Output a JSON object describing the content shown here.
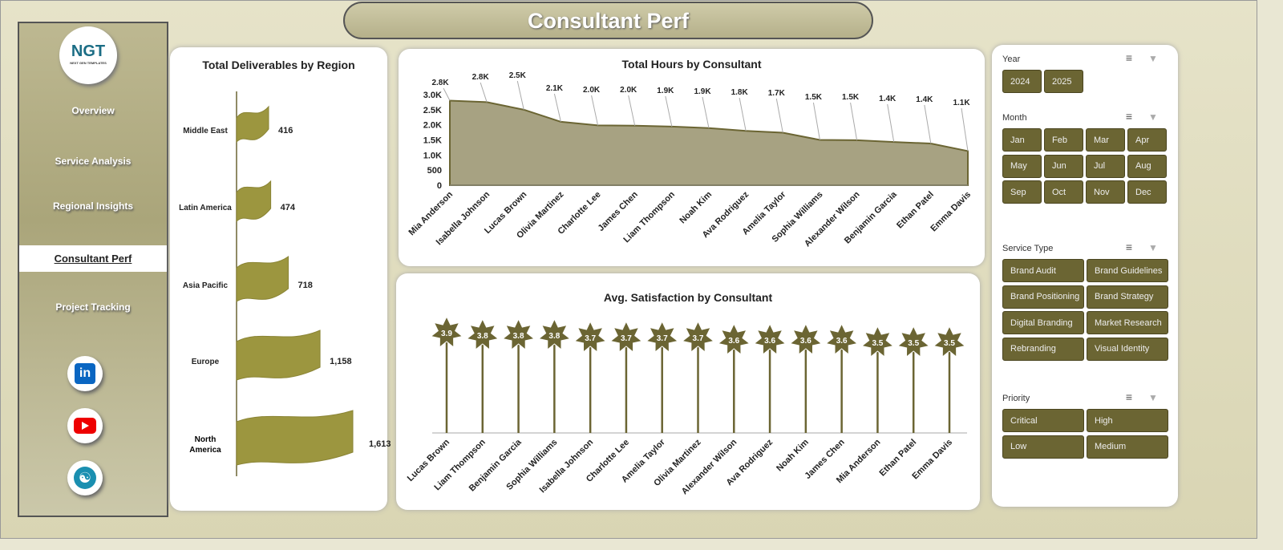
{
  "title": "Consultant Perf",
  "sidebar": {
    "logo": "NGT",
    "logo_sub": "NEXT GEN TEMPLATES",
    "items": [
      {
        "label": "Overview"
      },
      {
        "label": "Service Analysis"
      },
      {
        "label": "Regional Insights"
      },
      {
        "label": "Consultant Perf",
        "active": true
      },
      {
        "label": "Project Tracking"
      }
    ],
    "social": [
      "linkedin-icon",
      "youtube-icon",
      "globe-icon"
    ]
  },
  "filters": {
    "year": {
      "label": "Year",
      "options": [
        "2024",
        "2025"
      ]
    },
    "month": {
      "label": "Month",
      "options": [
        "Jan",
        "Feb",
        "Mar",
        "Apr",
        "May",
        "Jun",
        "Jul",
        "Aug",
        "Sep",
        "Oct",
        "Nov",
        "Dec"
      ]
    },
    "service": {
      "label": "Service Type",
      "options": [
        "Brand Audit",
        "Brand Guidelines",
        "Brand Positioning",
        "Brand Strategy",
        "Digital Branding",
        "Market Research",
        "Rebranding",
        "Visual Identity"
      ]
    },
    "priority": {
      "label": "Priority",
      "options": [
        "Critical",
        "High",
        "Low",
        "Medium"
      ]
    },
    "accent": "#6b6533"
  },
  "chart_data": [
    {
      "type": "bar",
      "orientation": "horizontal",
      "title": "Total Deliverables by Region",
      "categories": [
        "Middle East",
        "Latin America",
        "Asia Pacific",
        "Europe",
        "North America"
      ],
      "values": [
        416,
        474,
        718,
        1158,
        1613
      ],
      "labels": [
        "416",
        "474",
        "718",
        "1,158",
        "1,613"
      ],
      "color": "#9c963f"
    },
    {
      "type": "area",
      "title": "Total Hours by Consultant",
      "categories": [
        "Mia Anderson",
        "Isabella Johnson",
        "Lucas Brown",
        "Olivia Martinez",
        "Charlotte Lee",
        "James Chen",
        "Liam Thompson",
        "Noah Kim",
        "Ava Rodriguez",
        "Amelia Taylor",
        "Sophia Williams",
        "Alexander Wilson",
        "Benjamin Garcia",
        "Ethan Patel",
        "Emma Davis"
      ],
      "values": [
        2800,
        2750,
        2500,
        2100,
        1980,
        1970,
        1940,
        1890,
        1800,
        1740,
        1500,
        1490,
        1430,
        1380,
        1130
      ],
      "labels": [
        "2.8K",
        "2.8K",
        "2.5K",
        "2.1K",
        "2.0K",
        "2.0K",
        "1.9K",
        "1.9K",
        "1.8K",
        "1.7K",
        "1.5K",
        "1.5K",
        "1.4K",
        "1.4K",
        "1.1K"
      ],
      "yticks": [
        "0",
        "500",
        "1.0K",
        "1.5K",
        "2.0K",
        "2.5K",
        "3.0K"
      ],
      "ylim": [
        0,
        3000
      ],
      "color": "#a7a282"
    },
    {
      "type": "lollipop",
      "title": "Avg. Satisfaction by Consultant",
      "categories": [
        "Lucas Brown",
        "Liam Thompson",
        "Benjamin Garcia",
        "Sophia Williams",
        "Isabella Johnson",
        "Charlotte Lee",
        "Amelia Taylor",
        "Olivia Martinez",
        "Alexander Wilson",
        "Ava Rodriguez",
        "Noah Kim",
        "James Chen",
        "Mia Anderson",
        "Ethan Patel",
        "Emma Davis"
      ],
      "values": [
        3.9,
        3.8,
        3.8,
        3.8,
        3.7,
        3.7,
        3.7,
        3.7,
        3.6,
        3.6,
        3.6,
        3.6,
        3.5,
        3.5,
        3.5
      ],
      "color": "#6b6533"
    }
  ]
}
